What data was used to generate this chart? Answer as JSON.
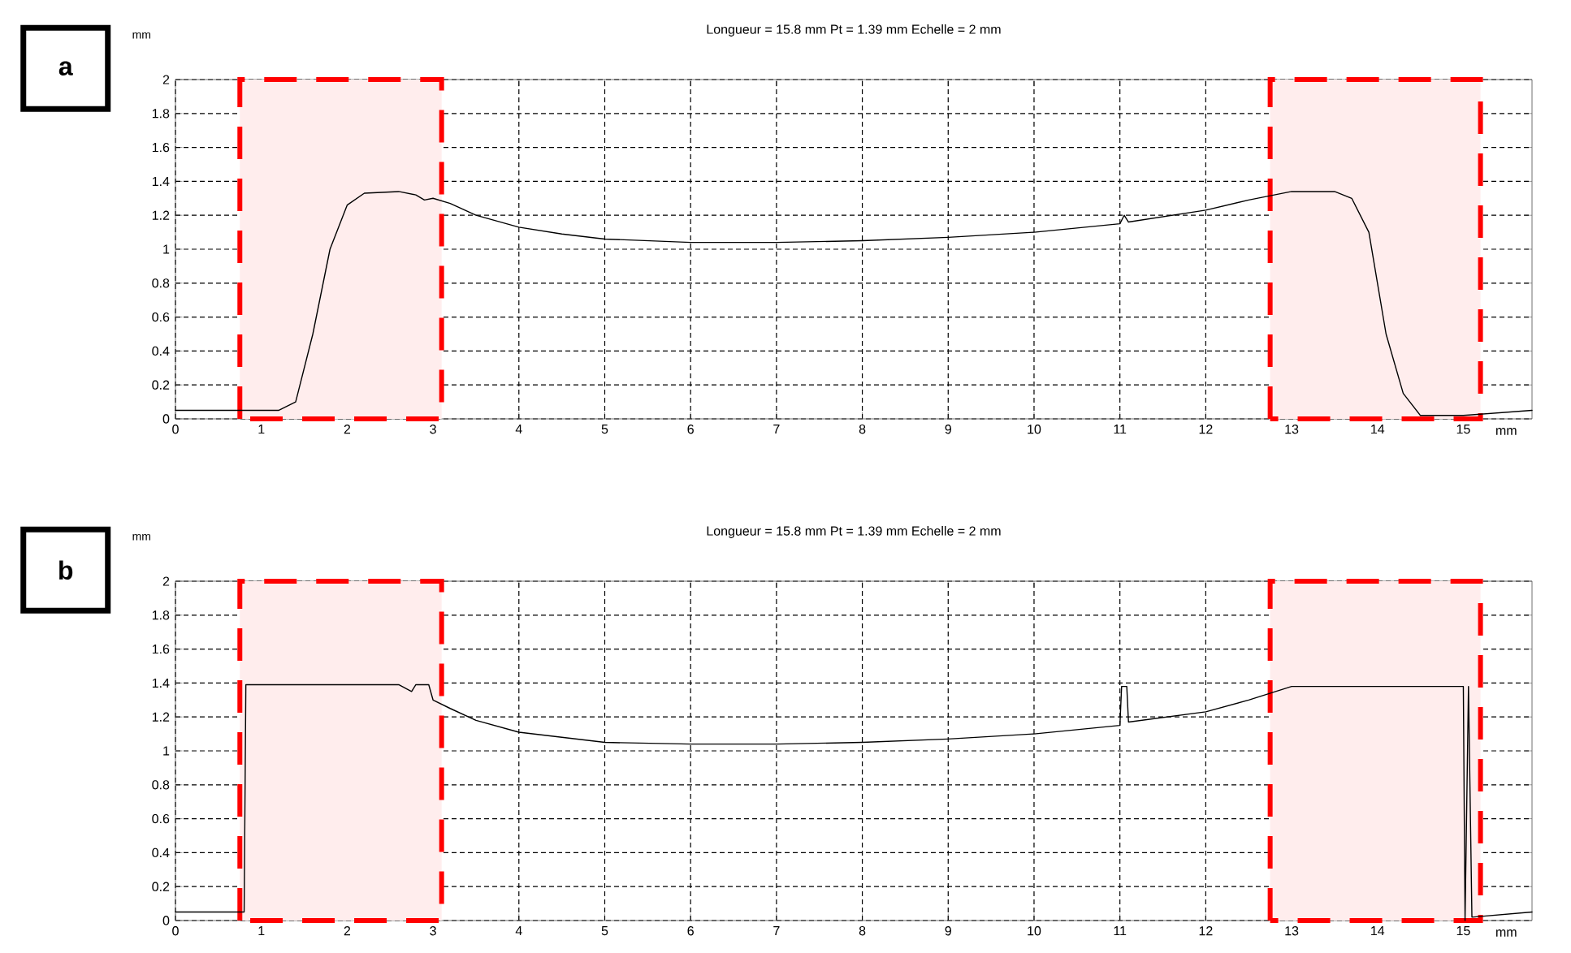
{
  "chart_data": [
    {
      "type": "line",
      "title": "Longueur = 15.8 mm  Pt = 1.39 mm  Echelle = 2 mm",
      "xlabel": "mm",
      "ylabel": "mm",
      "annotations": [
        "a"
      ],
      "x": [
        0,
        0.8,
        1.2,
        1.4,
        1.6,
        1.8,
        2.0,
        2.2,
        2.6,
        2.8,
        2.9,
        3.0,
        3.2,
        3.5,
        4,
        4.5,
        5,
        6,
        7,
        8,
        9,
        10,
        11,
        11.05,
        11.1,
        12,
        12.5,
        13,
        13.5,
        13.7,
        13.9,
        14.0,
        14.1,
        14.3,
        14.5,
        15,
        15.8
      ],
      "series": [
        {
          "color": "#000000",
          "values": [
            0.05,
            0.05,
            0.05,
            0.1,
            0.5,
            1.0,
            1.26,
            1.33,
            1.34,
            1.32,
            1.29,
            1.3,
            1.27,
            1.2,
            1.13,
            1.09,
            1.06,
            1.04,
            1.04,
            1.05,
            1.07,
            1.1,
            1.15,
            1.2,
            1.16,
            1.23,
            1.29,
            1.34,
            1.34,
            1.3,
            1.1,
            0.8,
            0.5,
            0.15,
            0.02,
            0.02,
            0.05
          ]
        }
      ],
      "xlim": [
        0,
        15.8
      ],
      "ylim": [
        0,
        2
      ],
      "xticks": [
        0,
        1,
        2,
        3,
        4,
        5,
        6,
        7,
        8,
        9,
        10,
        11,
        12,
        13,
        14,
        15
      ],
      "yticks": [
        0,
        0.2,
        0.4,
        0.6,
        0.8,
        1,
        1.2,
        1.4,
        1.6,
        1.8,
        2
      ],
      "grid": true,
      "bands": [
        {
          "axis": "x",
          "from": 0.75,
          "to": 3.1,
          "color": "#ff0000"
        },
        {
          "axis": "x",
          "from": 12.75,
          "to": 15.2,
          "color": "#ff0000"
        }
      ]
    },
    {
      "type": "line",
      "title": "Longueur = 15.8 mm  Pt = 1.39 mm  Echelle = 2 mm",
      "xlabel": "mm",
      "ylabel": "mm",
      "annotations": [
        "b"
      ],
      "x": [
        0,
        0.8,
        0.82,
        2.6,
        2.75,
        2.8,
        2.95,
        3.0,
        3.2,
        3.5,
        4,
        5,
        6,
        7,
        8,
        9,
        10,
        11,
        11.02,
        11.08,
        11.1,
        12,
        12.5,
        13,
        15,
        15.02,
        15.06,
        15.1,
        15.8
      ],
      "series": [
        {
          "color": "#000000",
          "values": [
            0.05,
            0.05,
            1.39,
            1.39,
            1.35,
            1.39,
            1.39,
            1.3,
            1.25,
            1.18,
            1.11,
            1.05,
            1.04,
            1.04,
            1.05,
            1.07,
            1.1,
            1.15,
            1.38,
            1.38,
            1.17,
            1.23,
            1.3,
            1.38,
            1.38,
            0.0,
            1.38,
            0.02,
            0.05
          ]
        }
      ],
      "xlim": [
        0,
        15.8
      ],
      "ylim": [
        0,
        2
      ],
      "xticks": [
        0,
        1,
        2,
        3,
        4,
        5,
        6,
        7,
        8,
        9,
        10,
        11,
        12,
        13,
        14,
        15
      ],
      "yticks": [
        0,
        0.2,
        0.4,
        0.6,
        0.8,
        1,
        1.2,
        1.4,
        1.6,
        1.8,
        2
      ],
      "grid": true,
      "bands": [
        {
          "axis": "x",
          "from": 0.75,
          "to": 3.1,
          "color": "#ff0000"
        },
        {
          "axis": "x",
          "from": 12.75,
          "to": 15.2,
          "color": "#ff0000"
        }
      ]
    }
  ]
}
